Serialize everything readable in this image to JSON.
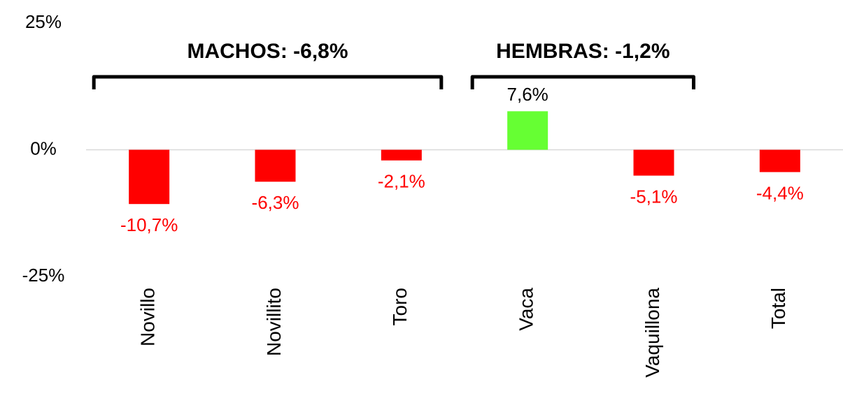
{
  "chart_data": {
    "type": "bar",
    "categories": [
      "Novillo",
      "Novillito",
      "Toro",
      "Vaca",
      "Vaquillona",
      "Total"
    ],
    "values": [
      -10.7,
      -6.3,
      -2.1,
      7.6,
      -5.1,
      -4.4
    ],
    "value_labels": [
      "-10,7%",
      "-6,3%",
      "-2,1%",
      "7,6%",
      "-5,1%",
      "-4,4%"
    ],
    "colors": [
      "#ff0000",
      "#ff0000",
      "#ff0000",
      "#66ff33",
      "#ff0000",
      "#ff0000"
    ],
    "value_label_colors": [
      "#ff0000",
      "#ff0000",
      "#ff0000",
      "#000000",
      "#ff0000",
      "#ff0000"
    ],
    "ylim": [
      -25,
      25
    ],
    "yticks": [
      {
        "value": 25,
        "label": "25%"
      },
      {
        "value": 0,
        "label": "0%"
      },
      {
        "value": -25,
        "label": "-25%"
      }
    ],
    "annotations": [
      {
        "text": "MACHOS: -6,8%",
        "span": [
          0,
          2
        ]
      },
      {
        "text": "HEMBRAS: -1,2%",
        "span": [
          3,
          4
        ]
      }
    ]
  }
}
